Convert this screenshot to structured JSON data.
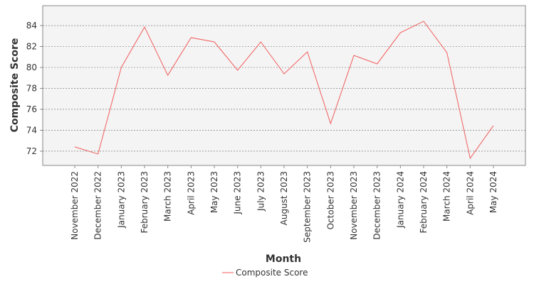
{
  "chart_data": {
    "type": "line",
    "x_label": "Month",
    "y_label": "Composite Score",
    "categories": [
      "November 2022",
      "December 2022",
      "January 2023",
      "February 2023",
      "March 2023",
      "April 2023",
      "May 2023",
      "June 2023",
      "July 2023",
      "August 2023",
      "September 2023",
      "October 2023",
      "November 2023",
      "December 2023",
      "January 2024",
      "February 2024",
      "March 2024",
      "April 2024",
      "May 2024"
    ],
    "series": [
      {
        "name": "Composite Score",
        "color": "#f25c5c",
        "values": [
          72.41,
          71.73,
          80.0,
          83.86,
          79.25,
          82.85,
          82.44,
          79.73,
          82.44,
          79.39,
          81.49,
          74.64,
          81.15,
          80.34,
          83.32,
          84.41,
          81.42,
          71.32,
          74.44
        ]
      }
    ],
    "ylim": [
      70.64,
      85.9
    ],
    "yticks": [
      72,
      74,
      76,
      78,
      80,
      82,
      84
    ],
    "grid": true,
    "legend": "bottom"
  }
}
